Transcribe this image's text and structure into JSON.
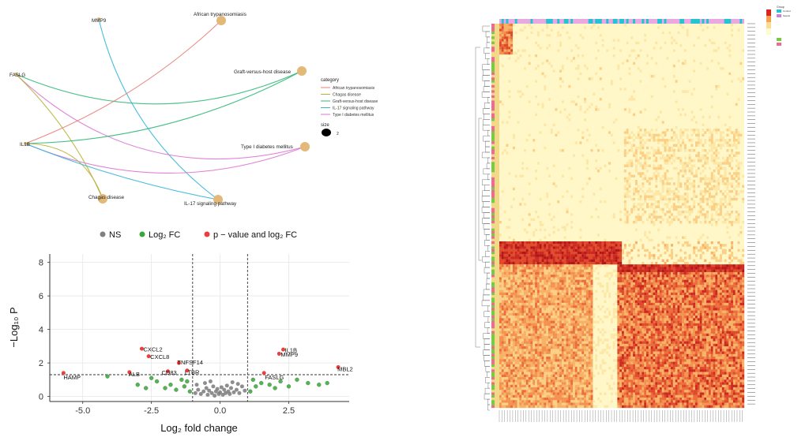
{
  "cnet": {
    "genes": [
      "MMP9",
      "FASLG",
      "IL1B"
    ],
    "categories": [
      "African trypanosomiasis",
      "Graft-versus-host disease",
      "Type I diabetes mellitus",
      "IL-17 signaling pathway",
      "Chagas disease"
    ],
    "legend": {
      "category_title": "category",
      "items": [
        {
          "label": "African trypanosomiasis",
          "color": "#e8807a"
        },
        {
          "label": "Chagas disease",
          "color": "#b8b23a"
        },
        {
          "label": "Graft-versus-host disease",
          "color": "#33b87a"
        },
        {
          "label": "IL-17 signaling pathway",
          "color": "#35b5d9"
        },
        {
          "label": "Type I diabetes mellitus",
          "color": "#dc74d4"
        }
      ],
      "size_title": "size",
      "size_value": "2"
    },
    "edges": [
      {
        "from": "MMP9",
        "to": "IL-17 signaling pathway",
        "cat": 3
      },
      {
        "from": "FASLG",
        "to": "Graft-versus-host disease",
        "cat": 2
      },
      {
        "from": "FASLG",
        "to": "Type I diabetes mellitus",
        "cat": 4
      },
      {
        "from": "FASLG",
        "to": "Chagas disease",
        "cat": 1
      },
      {
        "from": "IL1B",
        "to": "African trypanosomiasis",
        "cat": 0
      },
      {
        "from": "IL1B",
        "to": "Graft-versus-host disease",
        "cat": 2
      },
      {
        "from": "IL1B",
        "to": "Type I diabetes mellitus",
        "cat": 4
      },
      {
        "from": "IL1B",
        "to": "Chagas disease",
        "cat": 1
      },
      {
        "from": "IL1B",
        "to": "IL-17 signaling pathway",
        "cat": 3
      }
    ]
  },
  "chart_data": [
    {
      "type": "scatter",
      "xlabel": "Log₂ fold change",
      "ylabel": "−Log₁₀ P",
      "xlim": [
        -6.2,
        4.7
      ],
      "ylim": [
        -0.3,
        8.5
      ],
      "xticks": [
        -5.0,
        -2.5,
        0.0,
        2.5
      ],
      "yticks": [
        0,
        2,
        4,
        6,
        8
      ],
      "vlines": [
        -1,
        1
      ],
      "hline": 1.3,
      "legend": [
        {
          "label": "NS",
          "color": "#808080"
        },
        {
          "label": "Log₂ FC",
          "color": "#3aa53a"
        },
        {
          "label": "p − value and log₂ FC",
          "color": "#e8403c"
        }
      ],
      "labeled_points": [
        {
          "label": "HAMP",
          "x": -5.7,
          "y": 1.4
        },
        {
          "label": "ALB",
          "x": -3.3,
          "y": 1.45
        },
        {
          "label": "CXCL2",
          "x": -2.85,
          "y": 2.85
        },
        {
          "label": "CXCL8",
          "x": -2.6,
          "y": 2.4
        },
        {
          "label": "CD83",
          "x": -1.9,
          "y": 1.5
        },
        {
          "label": "TNFSF14",
          "x": -1.5,
          "y": 2.0
        },
        {
          "label": "LTBR",
          "x": -1.2,
          "y": 1.55
        },
        {
          "label": "IL1B",
          "x": 2.3,
          "y": 2.8
        },
        {
          "label": "MMP9",
          "x": 2.15,
          "y": 2.55
        },
        {
          "label": "FASLG",
          "x": 1.6,
          "y": 1.4
        },
        {
          "label": "MBL2",
          "x": 4.3,
          "y": 1.75
        }
      ],
      "series": [
        {
          "name": "Log₂ FC",
          "points": [
            [
              -4.1,
              1.2
            ],
            [
              -2.5,
              1.1
            ],
            [
              -2.3,
              0.9
            ],
            [
              -2.0,
              0.5
            ],
            [
              -1.8,
              0.7
            ],
            [
              -1.6,
              0.4
            ],
            [
              -1.4,
              1.0
            ],
            [
              -1.3,
              0.6
            ],
            [
              -1.2,
              0.9
            ],
            [
              -3.0,
              0.7
            ],
            [
              -2.7,
              0.5
            ],
            [
              1.2,
              1.0
            ],
            [
              1.3,
              0.6
            ],
            [
              1.5,
              0.8
            ],
            [
              1.8,
              0.7
            ],
            [
              2.0,
              0.5
            ],
            [
              2.2,
              0.9
            ],
            [
              2.5,
              0.6
            ],
            [
              2.8,
              1.0
            ],
            [
              3.2,
              0.8
            ],
            [
              3.6,
              0.7
            ],
            [
              3.9,
              0.8
            ],
            [
              -1.1,
              0.3
            ],
            [
              1.1,
              0.3
            ]
          ]
        },
        {
          "name": "NS",
          "points": [
            [
              -0.9,
              0.2
            ],
            [
              -0.8,
              0.4
            ],
            [
              -0.7,
              0.15
            ],
            [
              -0.6,
              0.3
            ],
            [
              -0.5,
              0.5
            ],
            [
              -0.45,
              0.1
            ],
            [
              -0.4,
              0.35
            ],
            [
              -0.3,
              0.2
            ],
            [
              -0.25,
              0.6
            ],
            [
              -0.2,
              0.05
            ],
            [
              -0.15,
              0.3
            ],
            [
              -0.1,
              0.45
            ],
            [
              -0.05,
              0.15
            ],
            [
              0.0,
              0.25
            ],
            [
              0.05,
              0.55
            ],
            [
              0.1,
              0.1
            ],
            [
              0.15,
              0.4
            ],
            [
              0.2,
              0.2
            ],
            [
              0.25,
              0.65
            ],
            [
              0.3,
              0.3
            ],
            [
              0.35,
              0.15
            ],
            [
              0.4,
              0.5
            ],
            [
              0.5,
              0.25
            ],
            [
              0.6,
              0.4
            ],
            [
              0.7,
              0.2
            ],
            [
              0.8,
              0.6
            ],
            [
              0.9,
              0.35
            ],
            [
              -0.85,
              0.7
            ],
            [
              -0.55,
              0.8
            ],
            [
              0.45,
              0.85
            ],
            [
              0.65,
              0.75
            ],
            [
              -0.35,
              0.9
            ]
          ]
        }
      ]
    },
    {
      "type": "heatmap",
      "rows": 150,
      "cols": 110,
      "scale": "white-yellow-orange-red",
      "legend": [
        "Group",
        "Control",
        "Sepsis"
      ]
    }
  ]
}
